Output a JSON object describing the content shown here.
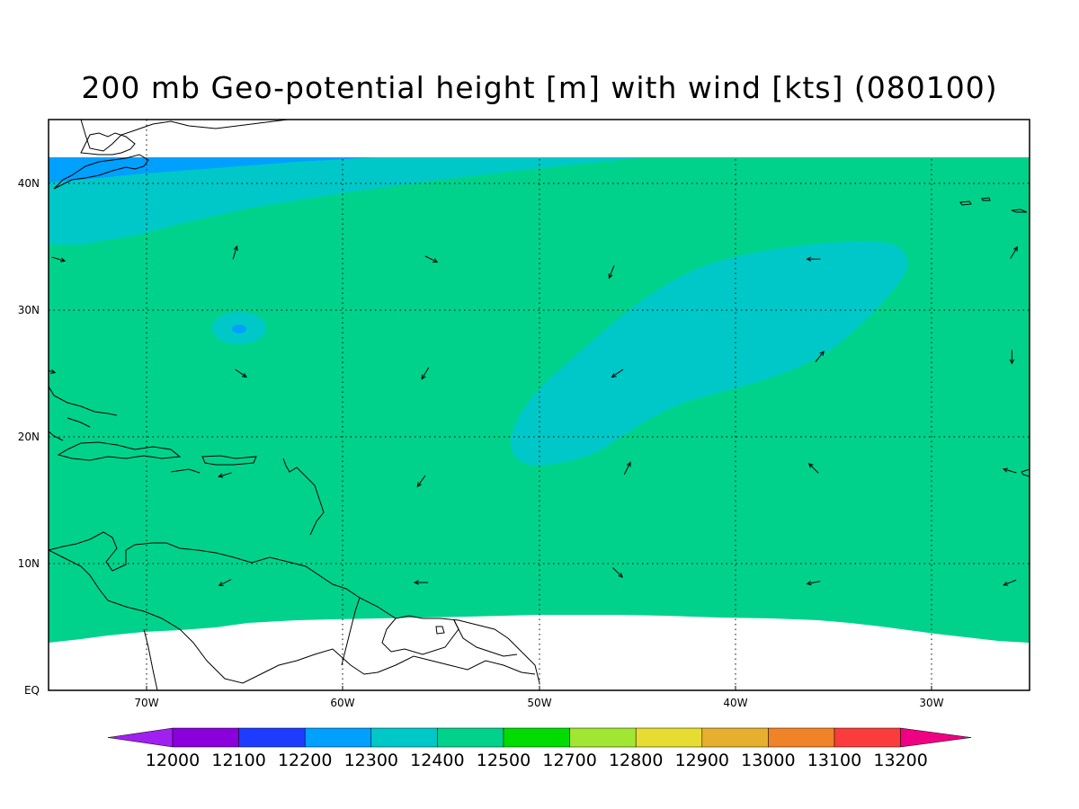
{
  "title": "200 mb Geo-potential height [m] with wind [kts] (080100)",
  "map": {
    "lon_range": [
      -75,
      -25
    ],
    "lat_range": [
      0,
      45
    ],
    "grid_lons": [
      -70,
      -60,
      -50,
      -40,
      -30
    ],
    "grid_lats": [
      10,
      20,
      30,
      40
    ],
    "lon_tick_labels": [
      "70W",
      "60W",
      "50W",
      "40W",
      "30W"
    ],
    "lat_tick_labels": [
      "EQ",
      "10N",
      "20N",
      "30N",
      "40N"
    ],
    "lat_tick_values": [
      0,
      10,
      20,
      30,
      40
    ]
  },
  "colorbar": {
    "levels": [
      "12000",
      "12100",
      "12200",
      "12300",
      "12400",
      "12500",
      "12700",
      "12800",
      "12900",
      "13000",
      "13100",
      "13200"
    ],
    "colors": [
      "#a020f0",
      "#8a00dc",
      "#1e3cff",
      "#00a0ff",
      "#00c8c8",
      "#00d28c",
      "#00dc00",
      "#a0e632",
      "#e6dc32",
      "#e6af2d",
      "#f08228",
      "#fa3c3c",
      "#f00082"
    ]
  },
  "wind_vectors": [
    {
      "lon": -65.5,
      "lat": 34.5,
      "u": 0.3,
      "v": 1
    },
    {
      "lon": -74.5,
      "lat": 34.0,
      "u": 1,
      "v": -0.3
    },
    {
      "lon": -55.5,
      "lat": 34.0,
      "u": 1,
      "v": -0.5
    },
    {
      "lon": -46.3,
      "lat": 33.0,
      "u": -0.4,
      "v": -1
    },
    {
      "lon": -36.0,
      "lat": 34.0,
      "u": -1,
      "v": 0
    },
    {
      "lon": -25.8,
      "lat": 34.5,
      "u": 0.6,
      "v": 1
    },
    {
      "lon": -65.2,
      "lat": 25.0,
      "u": 1,
      "v": -0.7
    },
    {
      "lon": -55.8,
      "lat": 25.0,
      "u": -0.6,
      "v": -1
    },
    {
      "lon": -46.0,
      "lat": 25.0,
      "u": -1,
      "v": -0.7
    },
    {
      "lon": -35.7,
      "lat": 26.3,
      "u": 0.8,
      "v": 1
    },
    {
      "lon": -25.9,
      "lat": 26.3,
      "u": 0,
      "v": -1
    },
    {
      "lon": -75.0,
      "lat": 25.2,
      "u": 1,
      "v": -0.3
    },
    {
      "lon": -66.0,
      "lat": 17.0,
      "u": -1,
      "v": -0.3
    },
    {
      "lon": -56.0,
      "lat": 16.5,
      "u": -0.7,
      "v": -1
    },
    {
      "lon": -45.5,
      "lat": 17.5,
      "u": 0.5,
      "v": 1
    },
    {
      "lon": -36.0,
      "lat": 17.5,
      "u": -0.8,
      "v": 0.8
    },
    {
      "lon": -26.0,
      "lat": 17.3,
      "u": -1,
      "v": 0.3
    },
    {
      "lon": -66.0,
      "lat": 8.5,
      "u": -1,
      "v": -0.5
    },
    {
      "lon": -56.0,
      "lat": 8.5,
      "u": -1,
      "v": 0
    },
    {
      "lon": -46.0,
      "lat": 9.3,
      "u": 0.8,
      "v": -0.8
    },
    {
      "lon": -36.0,
      "lat": 8.5,
      "u": -1,
      "v": -0.2
    },
    {
      "lon": -26.0,
      "lat": 8.5,
      "u": -1,
      "v": -0.4
    }
  ]
}
